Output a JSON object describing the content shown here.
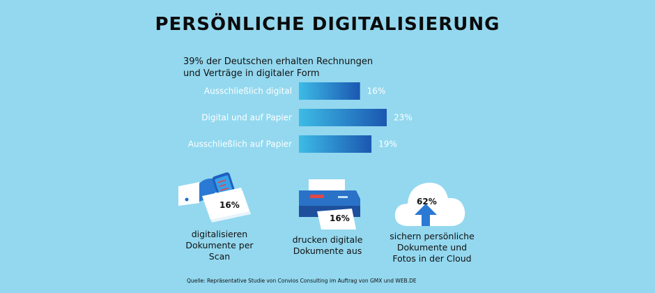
{
  "title": "PERSÖNLICHE DIGITALISIERUNG",
  "chart_data": {
    "type": "bar",
    "orientation": "horizontal",
    "title": "39% der Deutschen erhalten Rechnungen und Verträge in digitaler Form",
    "title_lines": [
      "39% der Deutschen erhalten Rechnungen",
      "und Verträge in digitaler Form"
    ],
    "categories": [
      "Ausschließlich digital",
      "Digital und auf Papier",
      "Ausschließlich auf Papier"
    ],
    "values": [
      16,
      23,
      19
    ],
    "value_labels": [
      "16%",
      "23%",
      "19%"
    ],
    "unit": "%",
    "xlim": [
      0,
      23
    ],
    "grid": false,
    "colors": {
      "bar_start": "#3dbbe6",
      "bar_end": "#1b57b0"
    }
  },
  "stats": [
    {
      "value": "16%",
      "caption": [
        "digitalisieren",
        "Dokumente per",
        "Scan"
      ],
      "icon": "phone-scan-icon"
    },
    {
      "value": "16%",
      "caption": [
        "drucken digitale",
        "Dokumente aus"
      ],
      "icon": "printer-icon"
    },
    {
      "value": "62%",
      "caption": [
        "sichern persönliche",
        "Dokumente und",
        "Fotos in der Cloud"
      ],
      "icon": "cloud-upload-icon"
    }
  ],
  "source": "Quelle: Repräsentative Studie von Convios Consulting im Auftrag von GMX und WEB.DE",
  "colors": {
    "background": "#93d8ef",
    "accent": "#1e6cc8",
    "text": "#111111"
  }
}
